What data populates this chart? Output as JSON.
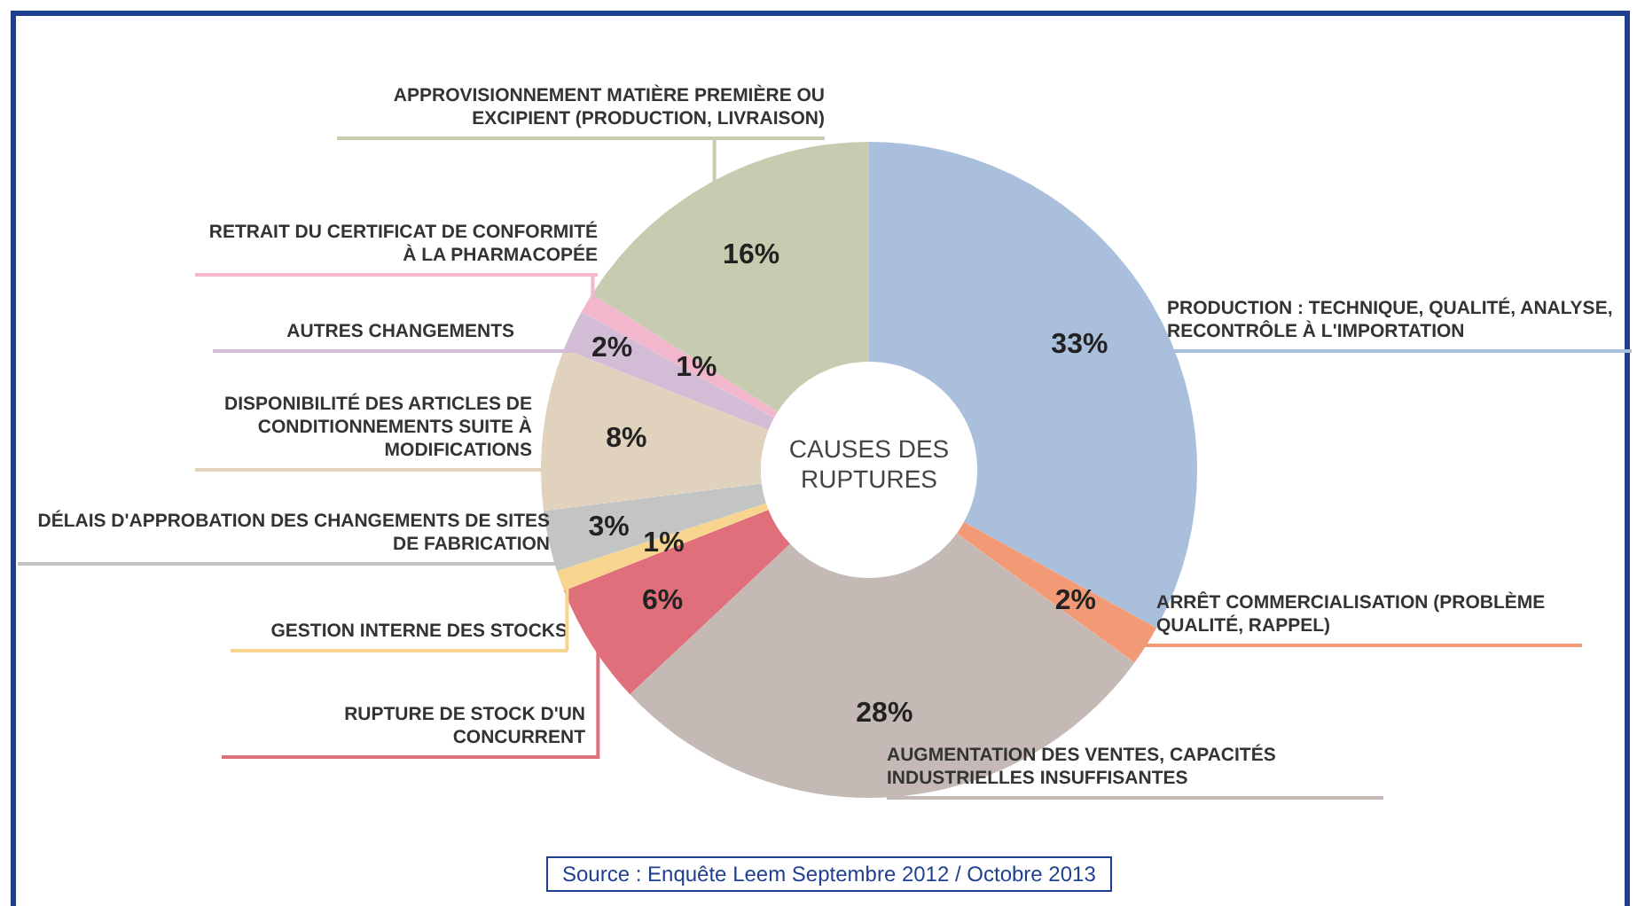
{
  "chart_data": {
    "type": "donut",
    "title": "CAUSES DES RUPTURES",
    "categories": [
      "PRODUCTION : TECHNIQUE, QUALITÉ, ANALYSE, RECONTRÔLE À L'IMPORTATION",
      "ARRÊT COMMERCIALISATION (PROBLÈME QUALITÉ, RAPPEL)",
      "AUGMENTATION DES VENTES, CAPACITÉS INDUSTRIELLES INSUFFISANTES",
      "RUPTURE DE STOCK D'UN CONCURRENT",
      "GESTION INTERNE DES STOCKS",
      "DÉLAIS D'APPROBATION DES CHANGEMENTS DE SITES DE FABRICATION",
      "DISPONIBILITÉ DES ARTICLES DE CONDITIONNEMENTS SUITE À MODIFICATIONS",
      "AUTRES CHANGEMENTS",
      "RETRAIT DU CERTIFICAT DE CONFORMITÉ À LA PHARMACOPÉE",
      "APPROVISIONNEMENT MATIÈRE PREMIÈRE OU EXCIPIENT (PRODUCTION, LIVRAISON)"
    ],
    "values": [
      33,
      2,
      28,
      6,
      1,
      3,
      8,
      2,
      1,
      16
    ],
    "value_labels": [
      "33%",
      "2%",
      "28%",
      "6%",
      "1%",
      "3%",
      "8%",
      "2%",
      "1%",
      "16%"
    ],
    "colors": [
      "#a9bfdc",
      "#f29a76",
      "#c4b9b4",
      "#df6f7b",
      "#f8d58f",
      "#c3c5c5",
      "#e0d2bc",
      "#d3bcd6",
      "#f2b7cc",
      "#c7ccb0"
    ],
    "annotations": [
      "Source : Enquête Leem Septembre 2012 / Octobre 2013"
    ],
    "legend": false
  }
}
